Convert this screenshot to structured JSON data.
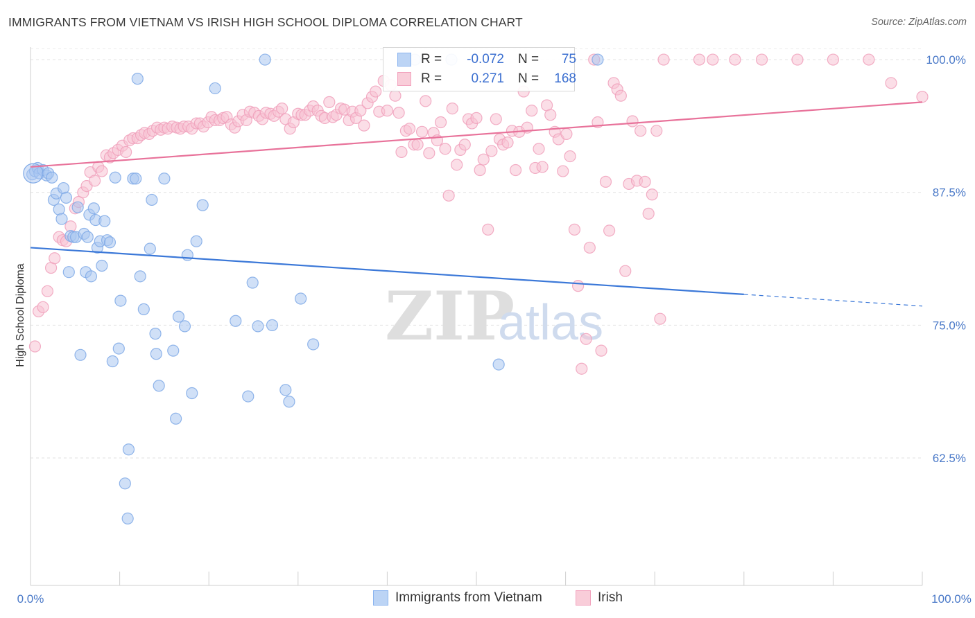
{
  "title": "IMMIGRANTS FROM VIETNAM VS IRISH HIGH SCHOOL DIPLOMA CORRELATION CHART",
  "source": "Source: ZipAtlas.com",
  "watermark": {
    "zip": "ZIP",
    "atlas": "atlas"
  },
  "legend": {
    "rows": [
      {
        "r_label": "R =",
        "r_value": "-0.072",
        "n_label": "N =",
        "n_value": "75",
        "color": "#8ab4ef",
        "fill": "#bcd4f5"
      },
      {
        "r_label": "R =",
        "r_value": "0.271",
        "n_label": "N =",
        "n_value": "168",
        "color": "#f2a2bd",
        "fill": "#f9cdd9"
      }
    ]
  },
  "bottom_legend": {
    "vietnam": "Immigrants from Vietnam",
    "irish": "Irish"
  },
  "chart_data": {
    "type": "scatter",
    "ylabel": "High School Diploma",
    "xlim": [
      0,
      100
    ],
    "ylim": [
      50.5,
      101.7
    ],
    "x_tick_labels": [
      "0.0%",
      "100.0%"
    ],
    "y_ticks": [
      100,
      87.5,
      75,
      62.5
    ],
    "y_tick_labels": [
      "100.0%",
      "87.5%",
      "75.0%",
      "62.5%"
    ],
    "grid": true,
    "colors": {
      "vietnam": "#3b78d8",
      "vietnam_fill": "#a9c6f1",
      "irish": "#e8729a",
      "irish_fill": "#f7c2d3"
    },
    "series": [
      {
        "name": "Immigrants from Vietnam",
        "trend": {
          "x0": 0,
          "y0": 82.3,
          "x1": 80.0,
          "y1": 77.9,
          "dash_to_x": 100,
          "dash_to_y": 76.8
        },
        "points": [
          [
            0.2,
            89.2
          ],
          [
            0.5,
            89.5
          ],
          [
            0.8,
            89.8
          ],
          [
            1.0,
            89.3
          ],
          [
            1.4,
            89.6
          ],
          [
            1.8,
            89.1
          ],
          [
            2.0,
            89.3
          ],
          [
            2.4,
            88.9
          ],
          [
            2.6,
            86.8
          ],
          [
            2.9,
            87.4
          ],
          [
            3.2,
            85.9
          ],
          [
            3.5,
            85.0
          ],
          [
            3.7,
            87.9
          ],
          [
            4.0,
            87.0
          ],
          [
            4.3,
            80.0
          ],
          [
            4.5,
            83.4
          ],
          [
            4.8,
            83.3
          ],
          [
            5.1,
            83.3
          ],
          [
            5.3,
            86.1
          ],
          [
            5.6,
            72.2
          ],
          [
            6.0,
            83.6
          ],
          [
            6.2,
            80.0
          ],
          [
            6.4,
            83.3
          ],
          [
            6.6,
            85.4
          ],
          [
            6.8,
            79.6
          ],
          [
            7.1,
            86.0
          ],
          [
            7.3,
            84.9
          ],
          [
            7.5,
            82.3
          ],
          [
            7.8,
            82.9
          ],
          [
            8.0,
            80.6
          ],
          [
            8.3,
            84.8
          ],
          [
            8.6,
            83.0
          ],
          [
            8.9,
            82.8
          ],
          [
            9.2,
            71.6
          ],
          [
            9.5,
            88.9
          ],
          [
            9.9,
            72.8
          ],
          [
            10.1,
            77.3
          ],
          [
            10.6,
            60.1
          ],
          [
            10.9,
            56.8
          ],
          [
            11.0,
            63.3
          ],
          [
            11.5,
            88.8
          ],
          [
            11.8,
            88.8
          ],
          [
            12.0,
            98.2
          ],
          [
            12.3,
            79.6
          ],
          [
            12.7,
            76.5
          ],
          [
            13.4,
            82.2
          ],
          [
            13.6,
            86.8
          ],
          [
            14.0,
            74.2
          ],
          [
            14.1,
            72.3
          ],
          [
            14.4,
            69.3
          ],
          [
            15.0,
            88.8
          ],
          [
            16.0,
            72.6
          ],
          [
            16.3,
            66.2
          ],
          [
            16.6,
            75.8
          ],
          [
            17.3,
            74.9
          ],
          [
            17.6,
            81.6
          ],
          [
            18.1,
            68.6
          ],
          [
            18.6,
            82.9
          ],
          [
            19.3,
            86.3
          ],
          [
            20.7,
            97.3
          ],
          [
            23.0,
            75.4
          ],
          [
            24.4,
            68.3
          ],
          [
            24.9,
            79.0
          ],
          [
            25.5,
            74.9
          ],
          [
            26.3,
            100.0
          ],
          [
            27.1,
            75.0
          ],
          [
            28.6,
            68.9
          ],
          [
            29.0,
            67.8
          ],
          [
            30.3,
            77.5
          ],
          [
            31.7,
            73.2
          ],
          [
            43.1,
            100.0
          ],
          [
            47.2,
            100.0
          ],
          [
            52.5,
            71.3
          ],
          [
            63.6,
            100.0
          ]
        ]
      },
      {
        "name": "Irish",
        "trend": {
          "x0": 0,
          "y0": 89.9,
          "x1": 100,
          "y1": 96.0
        },
        "points": [
          [
            0.5,
            73.0
          ],
          [
            0.9,
            76.3
          ],
          [
            1.4,
            76.7
          ],
          [
            1.9,
            78.2
          ],
          [
            2.3,
            80.4
          ],
          [
            2.7,
            81.3
          ],
          [
            3.2,
            83.3
          ],
          [
            3.6,
            83.0
          ],
          [
            4.0,
            82.9
          ],
          [
            4.5,
            84.3
          ],
          [
            5.0,
            86.0
          ],
          [
            5.4,
            86.6
          ],
          [
            5.9,
            87.5
          ],
          [
            6.3,
            88.1
          ],
          [
            6.7,
            89.4
          ],
          [
            7.2,
            88.6
          ],
          [
            7.6,
            89.9
          ],
          [
            8.0,
            89.5
          ],
          [
            8.5,
            91.0
          ],
          [
            8.9,
            90.8
          ],
          [
            9.3,
            91.2
          ],
          [
            9.8,
            91.5
          ],
          [
            10.3,
            91.9
          ],
          [
            10.7,
            91.3
          ],
          [
            11.1,
            92.4
          ],
          [
            11.5,
            92.6
          ],
          [
            12.0,
            92.6
          ],
          [
            12.4,
            92.9
          ],
          [
            12.8,
            93.1
          ],
          [
            13.3,
            93.0
          ],
          [
            13.7,
            93.3
          ],
          [
            14.2,
            93.6
          ],
          [
            14.6,
            93.4
          ],
          [
            15.0,
            93.6
          ],
          [
            15.4,
            93.5
          ],
          [
            15.9,
            93.7
          ],
          [
            16.4,
            93.6
          ],
          [
            16.8,
            93.5
          ],
          [
            17.2,
            93.7
          ],
          [
            17.7,
            93.7
          ],
          [
            18.1,
            93.5
          ],
          [
            18.6,
            94.0
          ],
          [
            19.0,
            94.0
          ],
          [
            19.4,
            93.7
          ],
          [
            19.9,
            94.1
          ],
          [
            20.3,
            94.6
          ],
          [
            20.7,
            94.3
          ],
          [
            21.2,
            94.3
          ],
          [
            21.6,
            94.5
          ],
          [
            22.0,
            94.6
          ],
          [
            22.5,
            93.9
          ],
          [
            22.9,
            93.6
          ],
          [
            23.3,
            94.2
          ],
          [
            23.8,
            94.8
          ],
          [
            24.2,
            94.3
          ],
          [
            24.6,
            95.1
          ],
          [
            25.1,
            95.0
          ],
          [
            25.6,
            94.7
          ],
          [
            26.0,
            94.4
          ],
          [
            26.4,
            95.0
          ],
          [
            26.9,
            94.9
          ],
          [
            27.3,
            94.7
          ],
          [
            27.8,
            95.1
          ],
          [
            28.2,
            95.4
          ],
          [
            28.6,
            94.4
          ],
          [
            29.1,
            93.5
          ],
          [
            29.5,
            94.1
          ],
          [
            30.0,
            94.9
          ],
          [
            30.4,
            94.8
          ],
          [
            30.8,
            94.8
          ],
          [
            31.3,
            95.2
          ],
          [
            31.7,
            95.6
          ],
          [
            32.2,
            95.2
          ],
          [
            32.6,
            94.7
          ],
          [
            33.0,
            94.5
          ],
          [
            33.5,
            96.0
          ],
          [
            33.9,
            94.6
          ],
          [
            34.3,
            94.8
          ],
          [
            34.8,
            95.4
          ],
          [
            35.2,
            95.3
          ],
          [
            35.7,
            94.3
          ],
          [
            36.1,
            95.1
          ],
          [
            36.5,
            94.5
          ],
          [
            37.0,
            95.2
          ],
          [
            37.4,
            93.8
          ],
          [
            37.8,
            95.9
          ],
          [
            38.3,
            96.5
          ],
          [
            38.7,
            97.0
          ],
          [
            39.1,
            95.1
          ],
          [
            39.6,
            98.0
          ],
          [
            40.0,
            95.2
          ],
          [
            40.4,
            97.6
          ],
          [
            40.9,
            96.6
          ],
          [
            41.3,
            95.0
          ],
          [
            41.6,
            91.3
          ],
          [
            42.1,
            93.3
          ],
          [
            42.5,
            93.5
          ],
          [
            43.0,
            92.0
          ],
          [
            43.4,
            92.0
          ],
          [
            43.9,
            93.2
          ],
          [
            44.3,
            96.1
          ],
          [
            44.7,
            91.2
          ],
          [
            45.2,
            93.1
          ],
          [
            45.6,
            92.4
          ],
          [
            46.0,
            94.1
          ],
          [
            46.5,
            91.6
          ],
          [
            46.9,
            87.2
          ],
          [
            47.3,
            95.4
          ],
          [
            47.8,
            90.1
          ],
          [
            48.2,
            91.5
          ],
          [
            48.7,
            92.0
          ],
          [
            49.1,
            94.4
          ],
          [
            49.5,
            94.0
          ],
          [
            50.0,
            94.5
          ],
          [
            50.4,
            89.6
          ],
          [
            50.8,
            90.6
          ],
          [
            51.3,
            84.0
          ],
          [
            51.7,
            91.4
          ],
          [
            52.2,
            94.4
          ],
          [
            52.6,
            92.5
          ],
          [
            53.0,
            92.0
          ],
          [
            53.5,
            92.2
          ],
          [
            54.0,
            93.3
          ],
          [
            54.4,
            89.6
          ],
          [
            54.8,
            93.2
          ],
          [
            55.3,
            97.0
          ],
          [
            55.7,
            93.6
          ],
          [
            56.2,
            95.2
          ],
          [
            56.6,
            89.8
          ],
          [
            57.0,
            91.6
          ],
          [
            57.4,
            89.9
          ],
          [
            57.9,
            95.7
          ],
          [
            58.3,
            94.8
          ],
          [
            58.8,
            93.2
          ],
          [
            59.2,
            92.5
          ],
          [
            59.7,
            89.5
          ],
          [
            60.1,
            93.0
          ],
          [
            60.5,
            90.9
          ],
          [
            61.0,
            84.0
          ],
          [
            61.4,
            78.7
          ],
          [
            61.8,
            70.9
          ],
          [
            62.3,
            73.7
          ],
          [
            62.7,
            82.3
          ],
          [
            63.2,
            100.0
          ],
          [
            63.6,
            94.1
          ],
          [
            64.0,
            72.6
          ],
          [
            64.5,
            88.5
          ],
          [
            64.9,
            83.9
          ],
          [
            65.4,
            97.8
          ],
          [
            65.8,
            97.2
          ],
          [
            66.2,
            96.6
          ],
          [
            66.7,
            80.1
          ],
          [
            67.1,
            88.3
          ],
          [
            67.5,
            94.2
          ],
          [
            68.0,
            88.6
          ],
          [
            68.4,
            93.3
          ],
          [
            68.9,
            88.5
          ],
          [
            69.3,
            85.5
          ],
          [
            69.7,
            87.3
          ],
          [
            70.2,
            93.3
          ],
          [
            70.6,
            75.6
          ],
          [
            71.0,
            100.0
          ],
          [
            75.0,
            100.0
          ],
          [
            76.5,
            100.0
          ],
          [
            79.0,
            100.0
          ],
          [
            82.0,
            100.0
          ],
          [
            86.0,
            100.0
          ],
          [
            90.0,
            100.0
          ],
          [
            94.0,
            100.0
          ],
          [
            96.5,
            97.8
          ],
          [
            100.0,
            96.5
          ]
        ]
      }
    ]
  }
}
